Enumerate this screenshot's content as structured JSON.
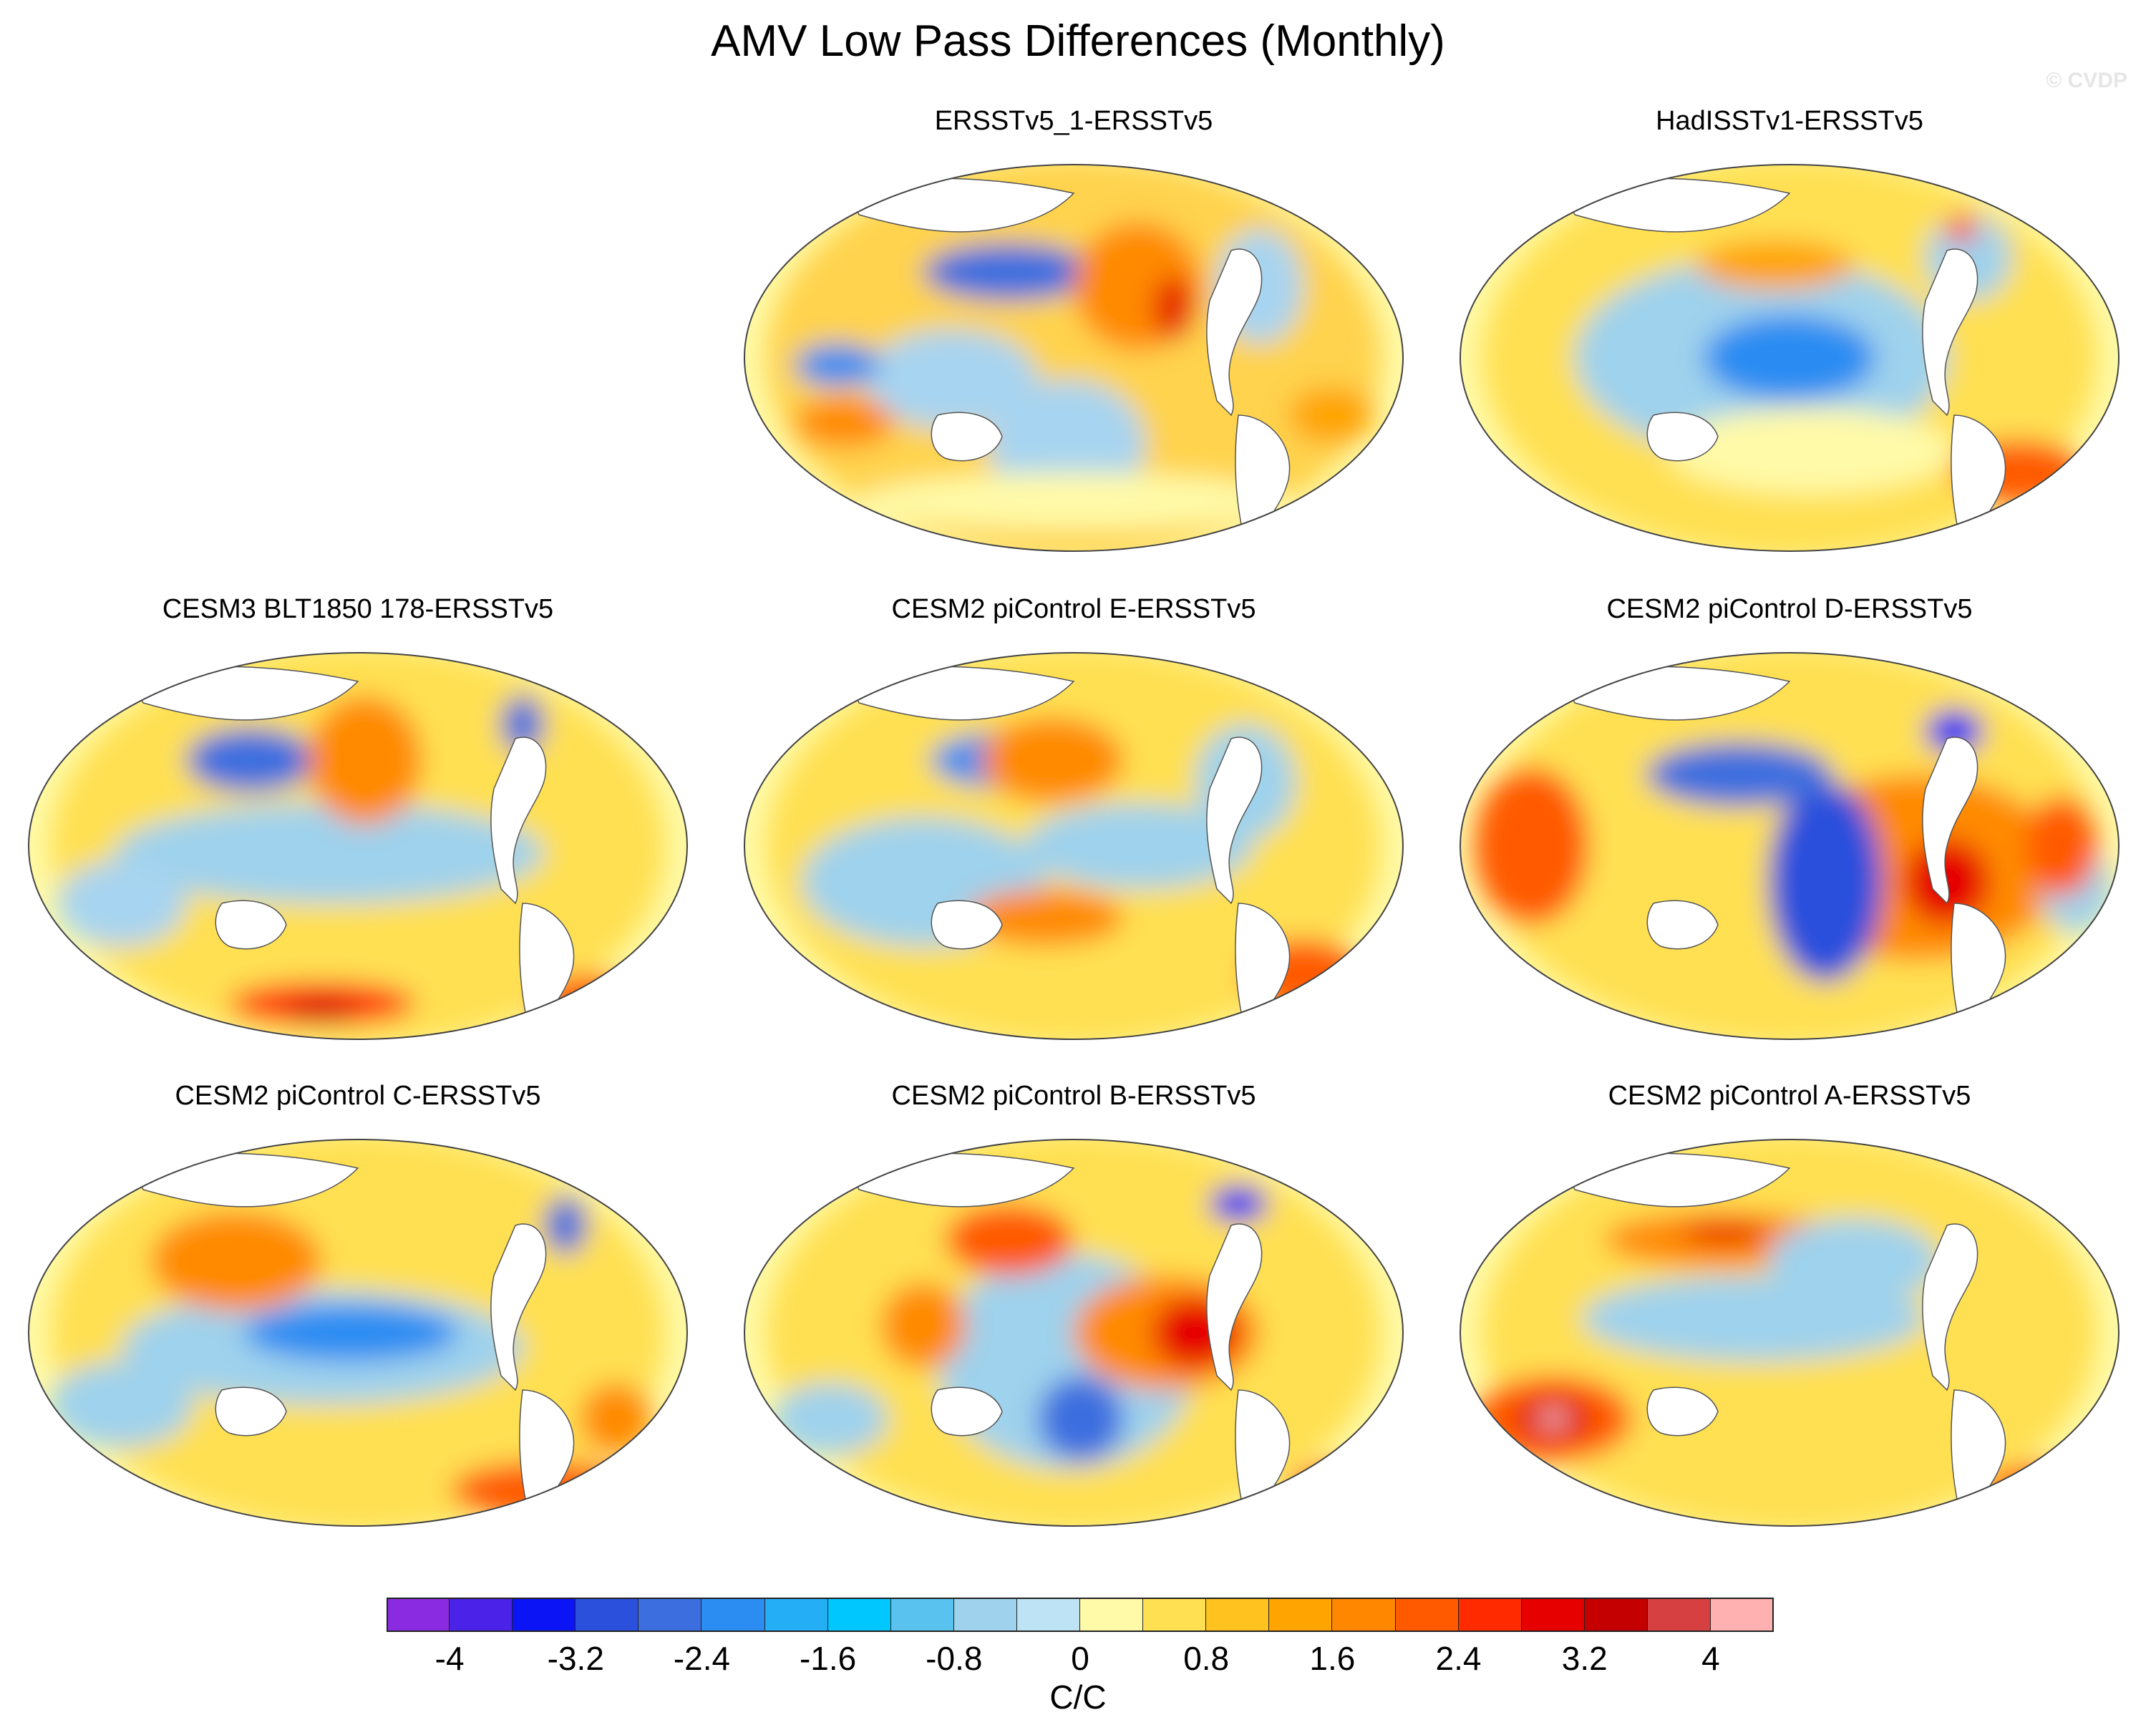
{
  "figure": {
    "title": "AMV Low Pass Differences (Monthly)",
    "watermark": "© CVDP"
  },
  "panels": [
    {
      "title": "ERSSTv5_1-ERSSTv5",
      "pattern": "amv-plus"
    },
    {
      "title": "HadISSTv1-ERSSTv5",
      "pattern": "pacific-cool"
    },
    {
      "title": "CESM3 BLT1850 178-ERSSTv5",
      "pattern": "southern-warm"
    },
    {
      "title": "CESM2 piControl E-ERSSTv5",
      "pattern": "mixed"
    },
    {
      "title": "CESM2 piControl D-ERSSTv5",
      "pattern": "east-pacific-warm"
    },
    {
      "title": "CESM2 piControl C-ERSSTv5",
      "pattern": "tropical-cool"
    },
    {
      "title": "CESM2 piControl B-ERSSTv5",
      "pattern": "east-pacific-hot"
    },
    {
      "title": "CESM2 piControl A-ERSSTv5",
      "pattern": "indian-hot"
    }
  ],
  "colorbar": {
    "units": "C/C",
    "colors": [
      "#8a2be2",
      "#4b22e8",
      "#0a14f5",
      "#2b50dc",
      "#3d6edf",
      "#2b8cf2",
      "#24aef5",
      "#00c8ff",
      "#59c2ef",
      "#9fd2ec",
      "#bde3f4",
      "#fffaa8",
      "#ffe052",
      "#ffc21f",
      "#ffa400",
      "#ff8700",
      "#ff5a00",
      "#ff2a00",
      "#e60000",
      "#c40000",
      "#d74040",
      "#ffb0b0"
    ],
    "ticks": [
      "-4",
      "-3.2",
      "-2.4",
      "-1.6",
      "-0.8",
      "0",
      "0.8",
      "1.6",
      "2.4",
      "3.2",
      "4"
    ]
  }
}
